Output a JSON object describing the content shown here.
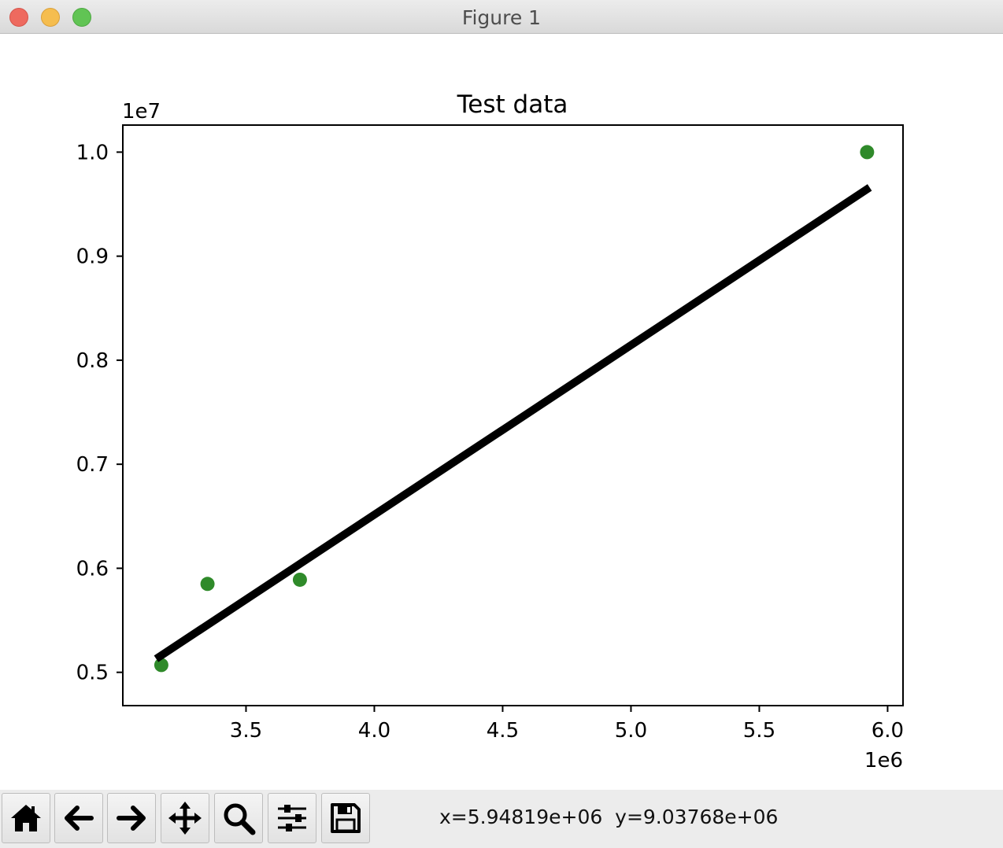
{
  "window": {
    "title": "Figure 1"
  },
  "chart_data": {
    "type": "scatter",
    "title": "Test data",
    "xlabel": "",
    "ylabel": "",
    "x_offset_label": "1e6",
    "y_offset_label": "1e7",
    "xlim": [
      3.02,
      6.06
    ],
    "ylim": [
      0.468,
      1.026
    ],
    "x_ticks": [
      3.5,
      4.0,
      4.5,
      5.0,
      5.5,
      6.0
    ],
    "x_tick_labels": [
      "3.5",
      "4.0",
      "4.5",
      "5.0",
      "5.5",
      "6.0"
    ],
    "y_ticks": [
      0.5,
      0.6,
      0.7,
      0.8,
      0.9,
      1.0
    ],
    "y_tick_labels": [
      "0.5",
      "0.6",
      "0.7",
      "0.8",
      "0.9",
      "1.0"
    ],
    "grid": false,
    "points": {
      "color": "#2f8a2a",
      "x": [
        3.17,
        3.35,
        3.71,
        5.92
      ],
      "y": [
        0.507,
        0.585,
        0.589,
        1.0
      ]
    },
    "fit_line": {
      "color": "#000000",
      "x": [
        3.15,
        5.93
      ],
      "y": [
        0.513,
        0.966
      ]
    }
  },
  "toolbar": {
    "buttons": [
      {
        "name": "home-button",
        "icon": "home-icon"
      },
      {
        "name": "back-button",
        "icon": "arrow-left-icon"
      },
      {
        "name": "forward-button",
        "icon": "arrow-right-icon"
      },
      {
        "name": "pan-button",
        "icon": "move-icon"
      },
      {
        "name": "zoom-button",
        "icon": "magnifier-icon"
      },
      {
        "name": "configure-subplots-button",
        "icon": "sliders-icon"
      },
      {
        "name": "save-button",
        "icon": "floppy-disk-icon"
      }
    ],
    "coordinates": "x=5.94819e+06  y=9.03768e+06"
  }
}
